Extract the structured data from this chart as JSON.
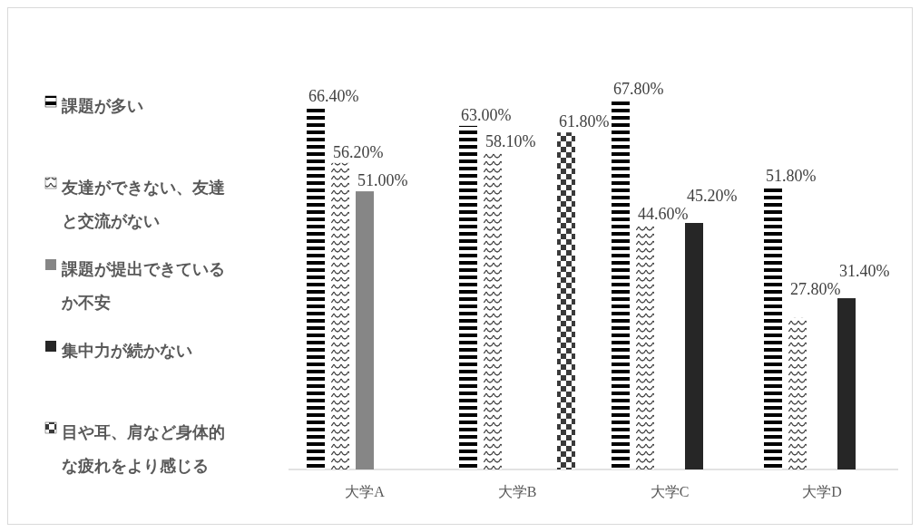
{
  "chart_data": {
    "type": "bar",
    "categories": [
      "大学A",
      "大学B",
      "大学C",
      "大学D"
    ],
    "series": [
      {
        "name": "課題が多い",
        "color": "#000000",
        "values": [
          66.4,
          63.0,
          67.8,
          51.8
        ],
        "value_labels": [
          "66.40%",
          "63.00%",
          "67.80%",
          "51.80%"
        ]
      },
      {
        "name": "友達ができない、友達と交流がない",
        "color": "#3a3a3a",
        "values": [
          56.2,
          58.1,
          44.6,
          27.8
        ],
        "value_labels": [
          "56.20%",
          "58.10%",
          "44.60%",
          "27.80%"
        ]
      },
      {
        "name": "課題が提出できているか不安",
        "color": "#868686",
        "values": [
          51.0,
          null,
          null,
          null
        ],
        "value_labels": [
          "51.00%",
          null,
          null,
          null
        ]
      },
      {
        "name": "集中力が続かない",
        "color": "#262626",
        "values": [
          null,
          null,
          45.2,
          31.4
        ],
        "value_labels": [
          null,
          null,
          "45.20%",
          "31.40%"
        ]
      },
      {
        "name": "目や耳、肩など身体的な疲れをより感じる",
        "color": "#3a3a3a",
        "values": [
          null,
          61.8,
          null,
          null
        ],
        "value_labels": [
          null,
          "61.80%",
          null,
          null
        ]
      }
    ],
    "tick_labels": "x",
    "legend": "left"
  }
}
